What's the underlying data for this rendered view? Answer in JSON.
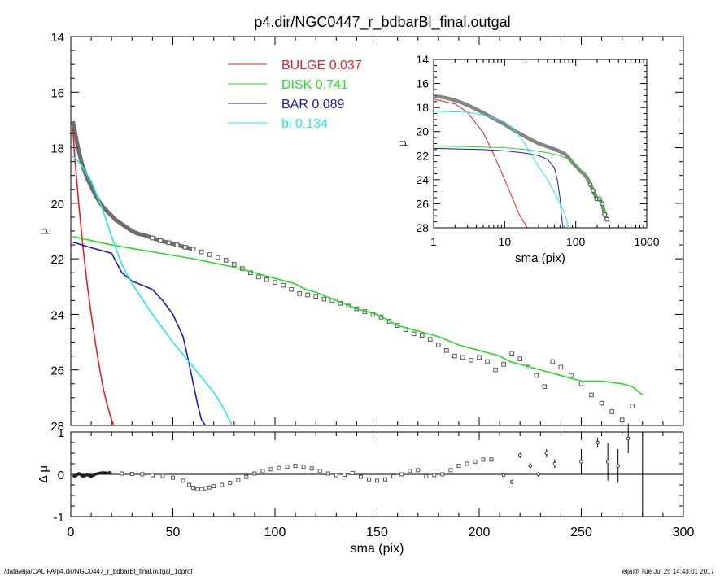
{
  "title": "p4.dir/NGC0447_r_bdbarBl_final.outgal",
  "footer_left": "/data/eija/CALIFA/p4.dir/NGC0447_r_bdbarBl_final.outgal_1dprof",
  "footer_right": "eija@  Tue Jul 25 14:43:01 2017",
  "colors": {
    "bulge": "#e0202a",
    "disk": "#22dd22",
    "bar": "#1a1ab0",
    "bl": "#22e8e8",
    "data": "#555555"
  },
  "chart_data": [
    {
      "id": "main",
      "type": "line",
      "xlabel": "",
      "ylabel": "μ",
      "xlim": [
        0,
        300
      ],
      "ylim": [
        28,
        14
      ],
      "yticks": [
        14,
        16,
        18,
        20,
        22,
        24,
        26,
        28
      ],
      "legend": [
        {
          "name": "BULGE",
          "value": "0.037",
          "color": "#e0202a"
        },
        {
          "name": "DISK",
          "value": "0.741",
          "color": "#22dd22"
        },
        {
          "name": "BAR",
          "value": "0.089",
          "color": "#1a1ab0"
        },
        {
          "name": "bl",
          "value": "0.134",
          "color": "#22e8e8"
        }
      ],
      "legend_placement": "top-center",
      "series": [
        {
          "name": "bulge",
          "color": "#e0202a",
          "x": [
            1,
            2,
            4,
            6,
            8,
            10,
            12,
            14,
            16,
            18,
            20,
            21
          ],
          "y": [
            17.3,
            18.4,
            20.1,
            21.6,
            22.9,
            24.0,
            25.0,
            25.9,
            26.7,
            27.3,
            27.8,
            28.0
          ]
        },
        {
          "name": "disk",
          "color": "#22dd22",
          "x": [
            1,
            20,
            40,
            60,
            80,
            90,
            100,
            110,
            115,
            120,
            130,
            140,
            150,
            160,
            170,
            180,
            190,
            200,
            210,
            215,
            220,
            230,
            240,
            250,
            260,
            270,
            275,
            280
          ],
          "y": [
            21.2,
            21.5,
            21.75,
            22.0,
            22.3,
            22.5,
            22.7,
            22.9,
            23.1,
            23.2,
            23.5,
            23.8,
            24.0,
            24.4,
            24.6,
            24.8,
            25.1,
            25.3,
            25.5,
            25.7,
            25.8,
            26.0,
            26.2,
            26.4,
            26.4,
            26.5,
            26.6,
            26.9
          ]
        },
        {
          "name": "bar",
          "color": "#1a1ab0",
          "x": [
            1,
            10,
            20,
            25,
            30,
            40,
            45,
            50,
            55,
            58,
            60,
            62,
            64,
            66
          ],
          "y": [
            21.4,
            21.6,
            21.8,
            22.5,
            22.8,
            23.1,
            23.5,
            24.0,
            24.8,
            25.8,
            26.5,
            27.2,
            27.8,
            28.0
          ]
        },
        {
          "name": "bl",
          "color": "#22e8e8",
          "x": [
            1,
            5,
            10,
            15,
            20,
            25,
            30,
            40,
            50,
            60,
            70,
            75,
            79
          ],
          "y": [
            18.3,
            18.6,
            19.2,
            20.1,
            21.2,
            22.2,
            22.9,
            24.0,
            25.0,
            25.9,
            26.8,
            27.4,
            28.0
          ]
        }
      ],
      "profile": {
        "x": [
          1,
          2,
          3,
          4,
          5,
          6,
          8,
          10,
          12,
          14,
          16,
          18,
          20,
          22,
          24,
          26,
          28,
          30,
          33,
          36,
          40,
          44,
          48,
          52,
          56,
          60,
          64,
          68,
          72,
          76,
          80,
          84,
          88,
          92,
          96,
          100,
          104,
          108,
          112,
          116,
          120,
          124,
          128,
          132,
          136,
          140,
          144,
          148,
          152,
          156,
          160,
          164,
          168,
          172,
          176,
          180,
          184,
          188,
          192,
          196,
          200,
          204,
          208,
          212,
          216,
          220,
          224,
          228,
          232,
          236,
          240,
          245,
          250,
          255,
          260,
          265,
          270,
          275
        ],
        "y": [
          17.05,
          17.4,
          17.8,
          18.15,
          18.45,
          18.7,
          19.1,
          19.4,
          19.7,
          19.95,
          20.15,
          20.3,
          20.45,
          20.6,
          20.7,
          20.8,
          20.9,
          21.0,
          21.1,
          21.15,
          21.25,
          21.35,
          21.42,
          21.5,
          21.58,
          21.65,
          21.75,
          21.85,
          21.95,
          22.05,
          22.2,
          22.35,
          22.5,
          22.65,
          22.75,
          22.85,
          22.95,
          23.1,
          23.25,
          23.3,
          23.35,
          23.45,
          23.5,
          23.6,
          23.7,
          23.8,
          23.9,
          24.0,
          24.1,
          24.25,
          24.4,
          24.55,
          24.7,
          24.75,
          24.9,
          25.1,
          25.3,
          25.5,
          25.55,
          25.65,
          25.55,
          25.7,
          26.0,
          25.8,
          25.4,
          25.6,
          25.9,
          26.2,
          26.6,
          25.7,
          25.9,
          26.2,
          26.5,
          26.9,
          27.2,
          27.5,
          27.8,
          27.3
        ]
      }
    },
    {
      "id": "residual",
      "type": "scatter",
      "xlabel": "sma (pix)",
      "ylabel": "Δ μ",
      "xlim": [
        0,
        300
      ],
      "ylim": [
        -1,
        1
      ],
      "xticks": [
        0,
        50,
        100,
        150,
        200,
        250,
        300
      ],
      "yticks": [
        -1,
        0,
        1
      ],
      "x": [
        1,
        2,
        4,
        6,
        8,
        10,
        12,
        14,
        16,
        18,
        20,
        25,
        30,
        35,
        40,
        45,
        50,
        55,
        58,
        60,
        62,
        64,
        66,
        68,
        70,
        74,
        78,
        82,
        86,
        90,
        94,
        98,
        102,
        106,
        110,
        114,
        118,
        122,
        126,
        130,
        134,
        138,
        142,
        146,
        150,
        154,
        158,
        162,
        166,
        170,
        174,
        178,
        182,
        186,
        190,
        194,
        198,
        202,
        206,
        212,
        216,
        220,
        225,
        229,
        233,
        237,
        250,
        258,
        263,
        268,
        273
      ],
      "y": [
        -0.02,
        -0.05,
        0.02,
        -0.05,
        -0.01,
        -0.05,
        0.0,
        0.03,
        0.04,
        0.03,
        0.05,
        0.02,
        0.01,
        0.0,
        -0.02,
        -0.04,
        -0.08,
        -0.15,
        -0.25,
        -0.32,
        -0.35,
        -0.35,
        -0.33,
        -0.31,
        -0.28,
        -0.25,
        -0.2,
        -0.14,
        -0.06,
        0.02,
        0.08,
        0.12,
        0.15,
        0.18,
        0.2,
        0.18,
        0.14,
        0.08,
        0.02,
        -0.02,
        -0.01,
        0.03,
        -0.06,
        -0.12,
        -0.15,
        -0.12,
        -0.05,
        0.0,
        0.08,
        0.1,
        -0.05,
        -0.02,
        0.0,
        0.1,
        0.2,
        0.25,
        0.3,
        0.35,
        0.35,
        -0.02,
        -0.18,
        0.45,
        0.2,
        0.0,
        0.5,
        0.25,
        0.3,
        0.75,
        0.3,
        0.2,
        0.85
      ],
      "err": [
        0,
        0,
        0,
        0,
        0,
        0,
        0,
        0,
        0,
        0,
        0,
        0,
        0,
        0,
        0,
        0,
        0,
        0,
        0,
        0,
        0,
        0,
        0,
        0,
        0,
        0,
        0,
        0,
        0,
        0,
        0,
        0,
        0,
        0,
        0,
        0,
        0,
        0,
        0,
        0,
        0,
        0,
        0,
        0,
        0,
        0,
        0,
        0,
        0,
        0,
        0,
        0,
        0,
        0,
        0,
        0,
        0,
        0,
        0,
        0.04,
        0.05,
        0.06,
        0.08,
        0.06,
        0.1,
        0.1,
        0.3,
        0.12,
        0.45,
        0.4,
        0.35
      ],
      "zero_line": 0,
      "vline_x": 280
    },
    {
      "id": "inset",
      "type": "line",
      "xlabel": "sma (pix)",
      "ylabel": "μ",
      "xscale": "log",
      "xlim": [
        1,
        1000
      ],
      "ylim": [
        28,
        14
      ],
      "xticks": [
        1,
        10,
        100,
        1000
      ],
      "yticks": [
        14,
        16,
        18,
        20,
        22,
        24,
        26,
        28
      ],
      "series": [
        {
          "name": "bulge",
          "color": "#e0202a",
          "x": [
            1,
            2,
            3,
            5,
            7,
            10,
            13,
            16,
            19,
            21
          ],
          "y": [
            17.3,
            17.7,
            18.4,
            20.1,
            21.9,
            24.0,
            25.6,
            26.9,
            27.6,
            28.0
          ]
        },
        {
          "name": "disk",
          "color": "#22dd22",
          "x": [
            1,
            3,
            10,
            20,
            40,
            60,
            80,
            100,
            140,
            200,
            280
          ],
          "y": [
            21.2,
            21.25,
            21.35,
            21.5,
            21.75,
            22.0,
            22.3,
            22.7,
            23.8,
            25.3,
            26.9
          ]
        },
        {
          "name": "bar",
          "color": "#1a1ab0",
          "x": [
            1,
            5,
            10,
            20,
            30,
            40,
            50,
            55,
            60,
            63,
            66
          ],
          "y": [
            21.4,
            21.5,
            21.6,
            21.8,
            22.0,
            22.3,
            23.0,
            24.0,
            25.5,
            27.0,
            28.0
          ]
        },
        {
          "name": "bl",
          "color": "#22e8e8",
          "x": [
            1,
            3,
            5,
            8,
            10,
            15,
            20,
            30,
            40,
            55,
            70,
            79
          ],
          "y": [
            18.3,
            18.4,
            18.6,
            19.0,
            19.2,
            20.1,
            21.2,
            22.9,
            24.0,
            25.5,
            26.8,
            28.0
          ]
        }
      ],
      "profile": {
        "x": [
          1,
          1.2,
          1.5,
          2,
          2.5,
          3,
          4,
          5,
          6,
          8,
          10,
          12,
          15,
          18,
          22,
          26,
          30,
          36,
          44,
          52,
          60,
          70,
          80,
          92,
          104,
          116,
          130,
          146,
          160,
          176,
          196,
          216,
          236,
          255,
          275
        ],
        "y": [
          17.05,
          17.1,
          17.2,
          17.4,
          17.6,
          17.8,
          18.15,
          18.45,
          18.7,
          19.1,
          19.4,
          19.7,
          20.05,
          20.3,
          20.6,
          20.8,
          21.0,
          21.15,
          21.35,
          21.5,
          21.65,
          21.85,
          22.2,
          22.65,
          22.95,
          23.3,
          23.5,
          23.9,
          24.4,
          24.9,
          25.6,
          25.6,
          26.0,
          26.9,
          27.3
        ]
      }
    }
  ]
}
